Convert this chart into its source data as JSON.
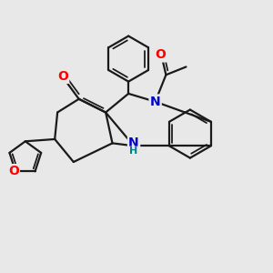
{
  "bg_color": "#e8e8e8",
  "bond_color": "#1a1a1a",
  "bond_width": 1.6,
  "dbo": 0.12,
  "atom_colors": {
    "O": "#ff0000",
    "N": "#0000cd",
    "NH": "#0000cd",
    "H": "#008080"
  },
  "font_size": 10,
  "fig_size": [
    3.0,
    3.0
  ],
  "dpi": 100
}
